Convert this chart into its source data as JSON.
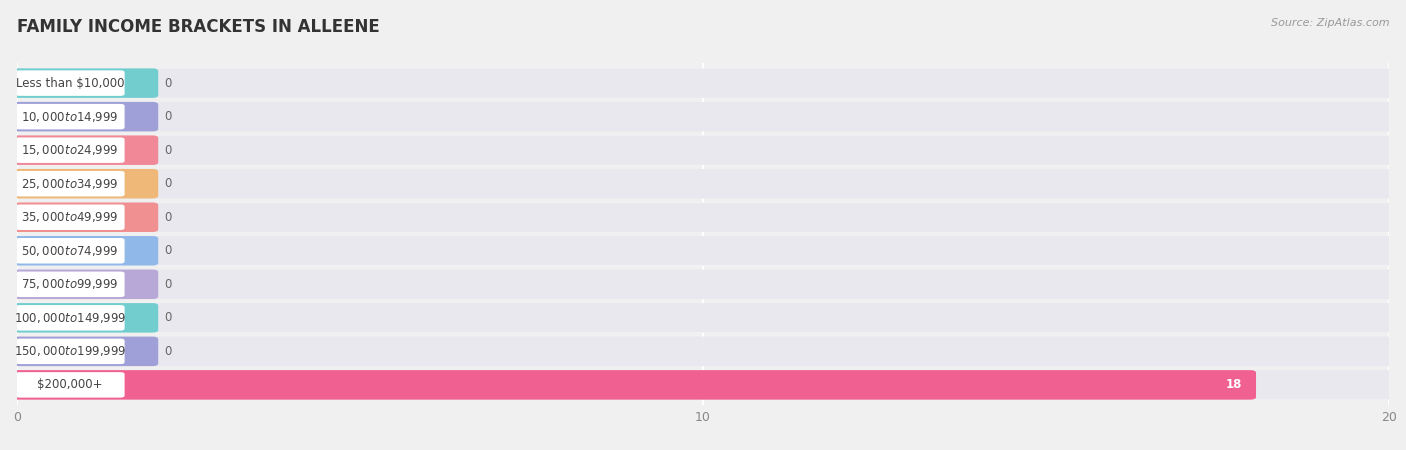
{
  "title": "FAMILY INCOME BRACKETS IN ALLEENE",
  "source": "Source: ZipAtlas.com",
  "categories": [
    "Less than $10,000",
    "$10,000 to $14,999",
    "$15,000 to $24,999",
    "$25,000 to $34,999",
    "$35,000 to $49,999",
    "$50,000 to $74,999",
    "$75,000 to $99,999",
    "$100,000 to $149,999",
    "$150,000 to $199,999",
    "$200,000+"
  ],
  "values": [
    0,
    0,
    0,
    0,
    0,
    0,
    0,
    0,
    0,
    18
  ],
  "bar_colors": [
    "#72cece",
    "#a0a0d8",
    "#f08898",
    "#f0b878",
    "#f09090",
    "#90b8e8",
    "#b8a8d8",
    "#72cece",
    "#a0a0d8",
    "#f06090"
  ],
  "xlim": [
    0,
    20
  ],
  "xticks": [
    0,
    10,
    20
  ],
  "background_color": "#f0f0f0",
  "row_color_odd": "#ffffff",
  "row_color_even": "#f0f0f0",
  "bar_bg_color": "#e8e8ee",
  "label_box_color": "#ffffff",
  "grid_color": "#ffffff",
  "title_fontsize": 12,
  "label_fontsize": 8.5,
  "value_fontsize": 8.5,
  "tick_fontsize": 9
}
